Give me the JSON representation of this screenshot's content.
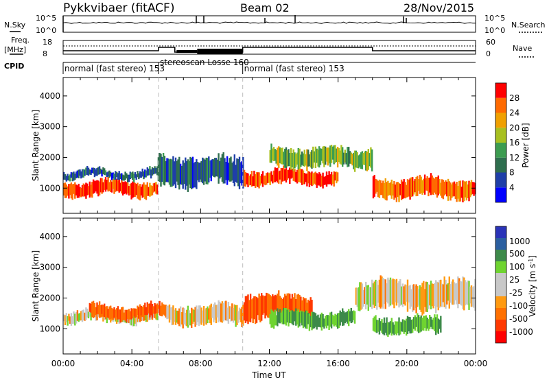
{
  "header": {
    "station": "Pykkvibaer (fitACF)",
    "beam": "Beam 02",
    "date": "28/Nov/2015"
  },
  "noise_panel": {
    "left_label": "N.Sky",
    "right_label": "N.Search",
    "left_ticks": [
      "10^5",
      "10^0"
    ],
    "right_ticks": [
      "10^5",
      "10^0"
    ]
  },
  "freq_panel": {
    "left_label_1": "Freq.",
    "left_label_2": "[MHz]",
    "right_label": "Nave",
    "left_ticks": [
      "18",
      "8"
    ],
    "right_ticks": [
      "60",
      "0"
    ]
  },
  "cpid": {
    "label": "CPID",
    "segments": [
      {
        "start_hour": 0,
        "end_hour": 5.55,
        "text": "normal (fast stereo) 153"
      },
      {
        "start_hour": 5.55,
        "end_hour": 10.45,
        "text": "stereoscan Losse 160"
      },
      {
        "start_hour": 10.45,
        "end_hour": 24,
        "text": "normal (fast stereo) 153"
      }
    ]
  },
  "colors": {
    "power_scale": [
      "#0000ff",
      "#1f3fa8",
      "#2e6e4e",
      "#3c9c50",
      "#a8c020",
      "#f0a000",
      "#ff6a00",
      "#ff0000"
    ],
    "velocity_scale": [
      "#2a33b8",
      "#2b5fa0",
      "#3d8a4a",
      "#6fd430",
      "#c8c8c8",
      "#c8c8c8",
      "#ff9a10",
      "#ff7000",
      "#ff3800",
      "#ff0000"
    ]
  },
  "chart_data": [
    {
      "type": "heatmap",
      "title": "Power",
      "xlabel": "Time UT",
      "ylabel": "Slant Range [km]",
      "colorbar_label": "Power [dB]",
      "colorbar_ticks": [
        "4",
        "8",
        "12",
        "16",
        "20",
        "24",
        "28"
      ],
      "x_ticks": [
        "00:00",
        "04:00",
        "08:00",
        "12:00",
        "16:00",
        "20:00",
        "00:00"
      ],
      "y_ticks": [
        "1000",
        "2000",
        "3000",
        "4000"
      ],
      "xlim": [
        0,
        24
      ],
      "ylim": [
        180,
        4600
      ],
      "regions": [
        {
          "start_hour": 0,
          "end_hour": 5.5,
          "range_center_km": 1000,
          "range_width_km": 450,
          "power_db": 28
        },
        {
          "start_hour": 0,
          "end_hour": 5.5,
          "range_center_km": 1450,
          "range_width_km": 250,
          "power_db": 8
        },
        {
          "start_hour": 5.5,
          "end_hour": 10.5,
          "range_center_km": 1550,
          "range_width_km": 900,
          "power_db": 8
        },
        {
          "start_hour": 10.5,
          "end_hour": 16,
          "range_center_km": 1350,
          "range_width_km": 450,
          "power_db": 28
        },
        {
          "start_hour": 12,
          "end_hour": 18,
          "range_center_km": 2000,
          "range_width_km": 600,
          "power_db": 16
        },
        {
          "start_hour": 18,
          "end_hour": 24,
          "range_center_km": 1000,
          "range_width_km": 600,
          "power_db": 26
        }
      ]
    },
    {
      "type": "heatmap",
      "title": "Velocity",
      "xlabel": "Time UT",
      "ylabel": "Slant Range [km]",
      "colorbar_label": "Velocity [m s^-1]",
      "colorbar_ticks": [
        "1000",
        "500",
        "100",
        "25",
        "-25",
        "-100",
        "-500",
        "-1000"
      ],
      "x_ticks": [
        "00:00",
        "04:00",
        "08:00",
        "12:00",
        "16:00",
        "20:00",
        "00:00"
      ],
      "y_ticks": [
        "1000",
        "2000",
        "3000",
        "4000"
      ],
      "xlim": [
        0,
        24
      ],
      "ylim": [
        180,
        4600
      ],
      "regions": [
        {
          "start_hour": 0,
          "end_hour": 5.5,
          "range_center_km": 1400,
          "range_width_km": 350,
          "velocity_ms": 0
        },
        {
          "start_hour": 1.5,
          "end_hour": 6,
          "range_center_km": 1550,
          "range_width_km": 400,
          "velocity_ms": -300
        },
        {
          "start_hour": 6,
          "end_hour": 10.5,
          "range_center_km": 1450,
          "range_width_km": 600,
          "velocity_ms": 0
        },
        {
          "start_hour": 10.5,
          "end_hour": 14.5,
          "range_center_km": 1700,
          "range_width_km": 800,
          "velocity_ms": -300
        },
        {
          "start_hour": 12,
          "end_hour": 17,
          "range_center_km": 1300,
          "range_width_km": 500,
          "velocity_ms": 300
        },
        {
          "start_hour": 18,
          "end_hour": 22,
          "range_center_km": 1100,
          "range_width_km": 500,
          "velocity_ms": 300
        },
        {
          "start_hour": 17,
          "end_hour": 24,
          "range_center_km": 2100,
          "range_width_km": 900,
          "velocity_ms": 0
        }
      ]
    }
  ]
}
